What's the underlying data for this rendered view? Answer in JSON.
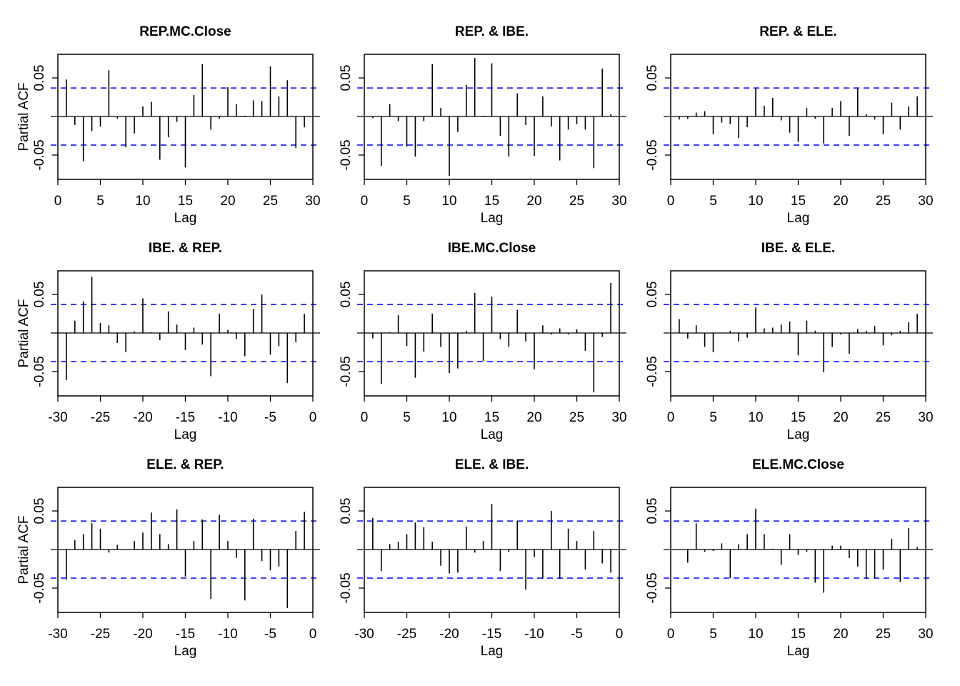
{
  "chart_data": {
    "type": "bar",
    "layout": "3x3 grid",
    "xlabel": "Lag",
    "ylabel": "Partial ACF",
    "ylim": [
      -0.0815,
      0.0806
    ],
    "yticks": [
      -0.05,
      0.05
    ],
    "ytick_labels": [
      "-0.05",
      "0.05"
    ],
    "ci": 0.037,
    "ci_color": "#0000ff",
    "bar_color": "#000000",
    "panels": [
      {
        "title": "REP.MC.Close",
        "ylabel_shown": true,
        "xlim": [
          0,
          30
        ],
        "xticks": [
          "0",
          "5",
          "10",
          "15",
          "20",
          "25",
          "30"
        ],
        "lag_start": 1,
        "values": [
          0.048,
          -0.011,
          -0.058,
          -0.019,
          -0.013,
          0.06,
          -0.003,
          -0.04,
          -0.022,
          0.013,
          0.019,
          -0.056,
          -0.027,
          -0.007,
          -0.066,
          0.028,
          0.068,
          -0.017,
          -0.003,
          0.038,
          0.016,
          0.001,
          0.021,
          0.02,
          0.065,
          0.026,
          0.047,
          -0.041,
          -0.014
        ]
      },
      {
        "title": "REP. & IBE.",
        "ylabel_shown": false,
        "xlim": [
          0,
          30
        ],
        "xticks": [
          "0",
          "5",
          "10",
          "15",
          "20",
          "25",
          "30"
        ],
        "lag_start": 1,
        "values": [
          -0.002,
          -0.064,
          0.016,
          -0.006,
          -0.039,
          -0.052,
          -0.006,
          0.068,
          0.011,
          -0.077,
          -0.02,
          0.041,
          0.076,
          0.001,
          0.069,
          -0.025,
          -0.052,
          0.03,
          -0.011,
          -0.051,
          0.026,
          -0.013,
          -0.057,
          -0.017,
          -0.01,
          -0.017,
          -0.067,
          0.062,
          0.003
        ]
      },
      {
        "title": "REP. & ELE.",
        "ylabel_shown": false,
        "xlim": [
          0,
          30
        ],
        "xticks": [
          "0",
          "5",
          "10",
          "15",
          "20",
          "25",
          "30"
        ],
        "lag_start": 1,
        "values": [
          -0.004,
          -0.003,
          0.005,
          0.007,
          -0.023,
          -0.008,
          -0.01,
          -0.028,
          -0.014,
          0.037,
          0.014,
          0.024,
          -0.005,
          -0.021,
          -0.033,
          0.011,
          -0.003,
          -0.035,
          0.011,
          0.02,
          -0.025,
          0.037,
          0.003,
          -0.004,
          -0.023,
          0.018,
          -0.017,
          0.013,
          0.026
        ]
      },
      {
        "title": "IBE. & REP.",
        "ylabel_shown": true,
        "xlim": [
          -30,
          0
        ],
        "xticks": [
          "-30",
          "-25",
          "-20",
          "-15",
          "-10",
          "-5",
          "0"
        ],
        "lag_start": -29,
        "values": [
          -0.061,
          0.016,
          0.041,
          0.073,
          0.013,
          0.01,
          -0.013,
          -0.025,
          0.002,
          0.045,
          0.001,
          -0.009,
          0.028,
          0.011,
          -0.022,
          0.007,
          -0.015,
          -0.056,
          0.025,
          0.004,
          -0.008,
          -0.03,
          0.031,
          0.05,
          -0.028,
          -0.017,
          -0.065,
          -0.012,
          0.025
        ]
      },
      {
        "title": "IBE.MC.Close",
        "ylabel_shown": false,
        "xlim": [
          0,
          30
        ],
        "xticks": [
          "0",
          "5",
          "10",
          "15",
          "20",
          "25",
          "30"
        ],
        "lag_start": 1,
        "values": [
          -0.007,
          -0.066,
          0.001,
          0.023,
          -0.017,
          -0.058,
          -0.024,
          0.025,
          -0.018,
          -0.052,
          -0.046,
          0.003,
          0.052,
          -0.036,
          0.047,
          -0.008,
          -0.018,
          0.03,
          -0.011,
          -0.047,
          0.01,
          -0.002,
          0.006,
          -0.002,
          0.005,
          -0.023,
          -0.077,
          -0.005,
          0.065
        ]
      },
      {
        "title": "IBE. & ELE.",
        "ylabel_shown": false,
        "xlim": [
          0,
          30
        ],
        "xticks": [
          "0",
          "5",
          "10",
          "15",
          "20",
          "25",
          "30"
        ],
        "lag_start": 1,
        "values": [
          0.018,
          -0.007,
          0.01,
          -0.018,
          -0.025,
          0.0,
          0.003,
          -0.011,
          -0.006,
          0.033,
          0.006,
          0.007,
          0.011,
          0.015,
          -0.029,
          0.016,
          0.003,
          -0.051,
          -0.018,
          -0.002,
          -0.027,
          0.005,
          0.003,
          0.009,
          -0.016,
          -0.003,
          0.003,
          0.014,
          0.025
        ]
      },
      {
        "title": "ELE. & REP.",
        "ylabel_shown": true,
        "xlim": [
          -30,
          0
        ],
        "xticks": [
          "-30",
          "-25",
          "-20",
          "-15",
          "-10",
          "-5",
          "0"
        ],
        "lag_start": -29,
        "values": [
          -0.039,
          0.012,
          0.02,
          0.034,
          0.027,
          -0.004,
          0.006,
          0.0,
          0.011,
          0.022,
          0.048,
          0.02,
          0.007,
          0.052,
          -0.035,
          0.011,
          0.039,
          -0.064,
          0.045,
          0.011,
          -0.011,
          -0.066,
          0.04,
          -0.015,
          -0.027,
          -0.022,
          -0.076,
          0.024,
          0.049
        ]
      },
      {
        "title": "ELE. & IBE.",
        "ylabel_shown": false,
        "xlim": [
          -30,
          0
        ],
        "xticks": [
          "-30",
          "-25",
          "-20",
          "-15",
          "-10",
          "-5",
          "0"
        ],
        "lag_start": -29,
        "values": [
          0.041,
          -0.028,
          0.007,
          0.01,
          0.02,
          0.035,
          0.029,
          0.01,
          -0.021,
          -0.031,
          -0.03,
          0.03,
          -0.004,
          0.011,
          0.059,
          -0.028,
          -0.003,
          0.037,
          -0.052,
          -0.01,
          -0.038,
          0.05,
          -0.038,
          0.027,
          0.011,
          -0.026,
          0.024,
          -0.018,
          -0.03
        ]
      },
      {
        "title": "ELE.MC.Close",
        "ylabel_shown": false,
        "xlim": [
          0,
          30
        ],
        "xticks": [
          "0",
          "5",
          "10",
          "15",
          "20",
          "25",
          "30"
        ],
        "lag_start": 1,
        "values": [
          0.0,
          -0.017,
          0.034,
          -0.003,
          -0.002,
          0.008,
          -0.037,
          0.007,
          0.02,
          0.053,
          0.02,
          0.001,
          -0.02,
          0.02,
          -0.007,
          -0.003,
          -0.043,
          -0.056,
          0.005,
          0.005,
          -0.011,
          -0.022,
          -0.038,
          -0.037,
          -0.026,
          0.014,
          -0.042,
          0.028,
          0.003
        ]
      }
    ]
  }
}
